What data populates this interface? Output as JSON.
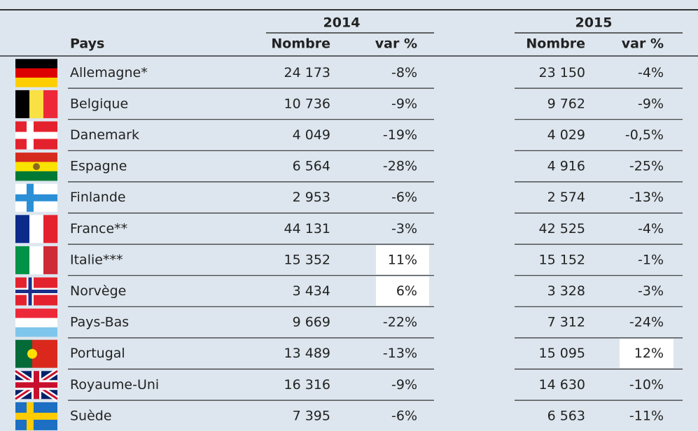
{
  "table": {
    "country_header": "Pays",
    "groups": [
      {
        "year": "2014",
        "columns": [
          "Nombre",
          "var %"
        ]
      },
      {
        "year": "2015",
        "columns": [
          "Nombre",
          "var %"
        ]
      }
    ],
    "rows": [
      [
        "Allemagne*",
        "24 173",
        "-8%",
        "23 150",
        "-4%"
      ],
      [
        "Belgique",
        "10 736",
        "-9%",
        "9 762",
        "-9%"
      ],
      [
        "Danemark",
        "4 049",
        "-19%",
        "4 029",
        "-0,5%"
      ],
      [
        "Espagne",
        "6 564",
        "-28%",
        "4 916",
        "-25%"
      ],
      [
        "Finlande",
        "2 953",
        "-6%",
        "2 574",
        "-13%"
      ],
      [
        "France**",
        "44 131",
        "-3%",
        "42 525",
        "-4%"
      ],
      [
        "Italie***",
        "15 352",
        "11%",
        "15 152",
        "-1%"
      ],
      [
        "Norvège",
        "3 434",
        "6%",
        "3 328",
        "-3%"
      ],
      [
        "Pays-Bas",
        "9 669",
        "-22%",
        "7 312",
        "-24%"
      ],
      [
        "Portugal",
        "13 489",
        "-13%",
        "15 095",
        "12%"
      ],
      [
        "Royaume-Uni",
        "16 316",
        "-9%",
        "14 630",
        "-10%"
      ],
      [
        "Suède",
        "7 395",
        "-6%",
        "6 563",
        "-11%"
      ]
    ],
    "highlighted_cells": [
      [
        6,
        2
      ],
      [
        7,
        2
      ],
      [
        9,
        4
      ]
    ]
  }
}
